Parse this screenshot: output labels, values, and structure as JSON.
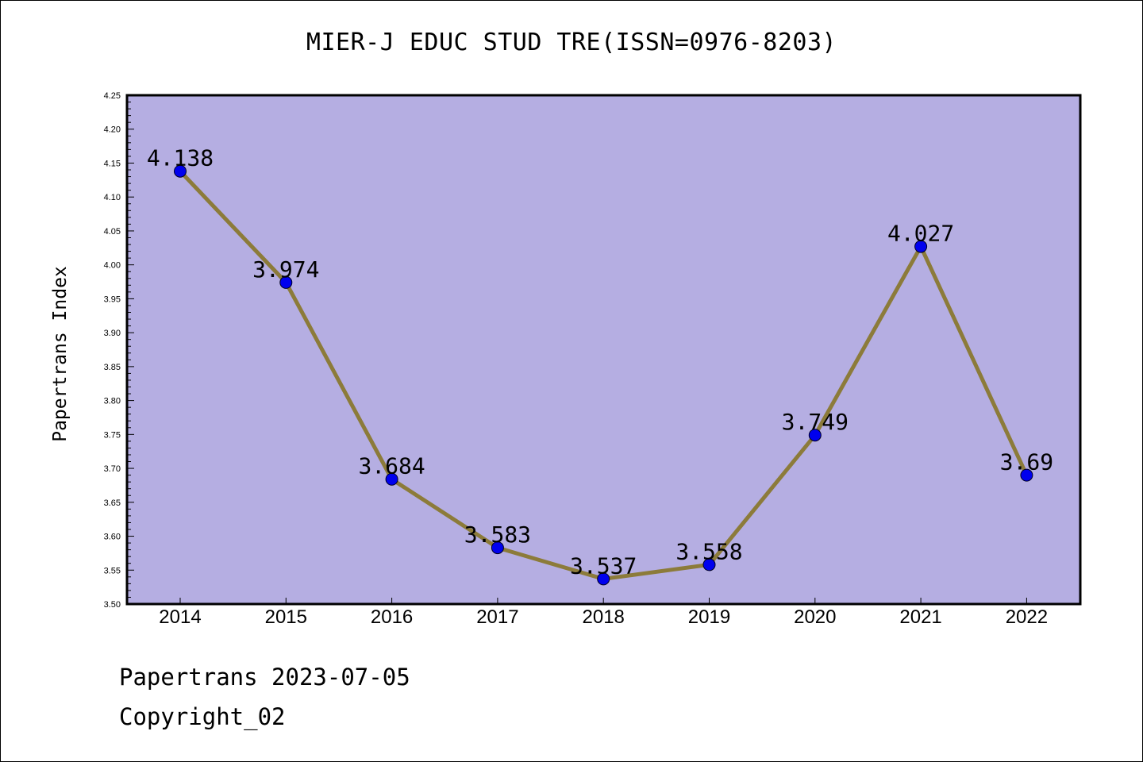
{
  "title": "MIER-J EDUC STUD TRE(ISSN=0976-8203)",
  "footer": {
    "date_line": "Papertrans 2023-07-05",
    "copyright_line": "Copyright_02"
  },
  "colors": {
    "plot_background": "#b5aee2",
    "line": "#8c7b3a",
    "marker": "#0000ee",
    "axis": "#000000"
  },
  "chart_data": {
    "type": "line",
    "title": "MIER-J EDUC STUD TRE(ISSN=0976-8203)",
    "xlabel": "",
    "ylabel": "Papertrans Index",
    "categories": [
      "2014",
      "2015",
      "2016",
      "2017",
      "2018",
      "2019",
      "2020",
      "2021",
      "2022"
    ],
    "values": [
      4.138,
      3.974,
      3.684,
      3.583,
      3.537,
      3.558,
      3.749,
      4.027,
      3.69
    ],
    "value_labels": [
      "4.138",
      "3.974",
      "3.684",
      "3.583",
      "3.537",
      "3.558",
      "3.749",
      "4.027",
      "3.69"
    ],
    "ylim": [
      3.5,
      4.25
    ],
    "yticks": [
      "3.50",
      "3.55",
      "3.60",
      "3.65",
      "3.70",
      "3.75",
      "3.80",
      "3.85",
      "3.90",
      "3.95",
      "4.00",
      "4.05",
      "4.10",
      "4.15",
      "4.20",
      "4.25"
    ],
    "grid": false,
    "legend": "none"
  }
}
